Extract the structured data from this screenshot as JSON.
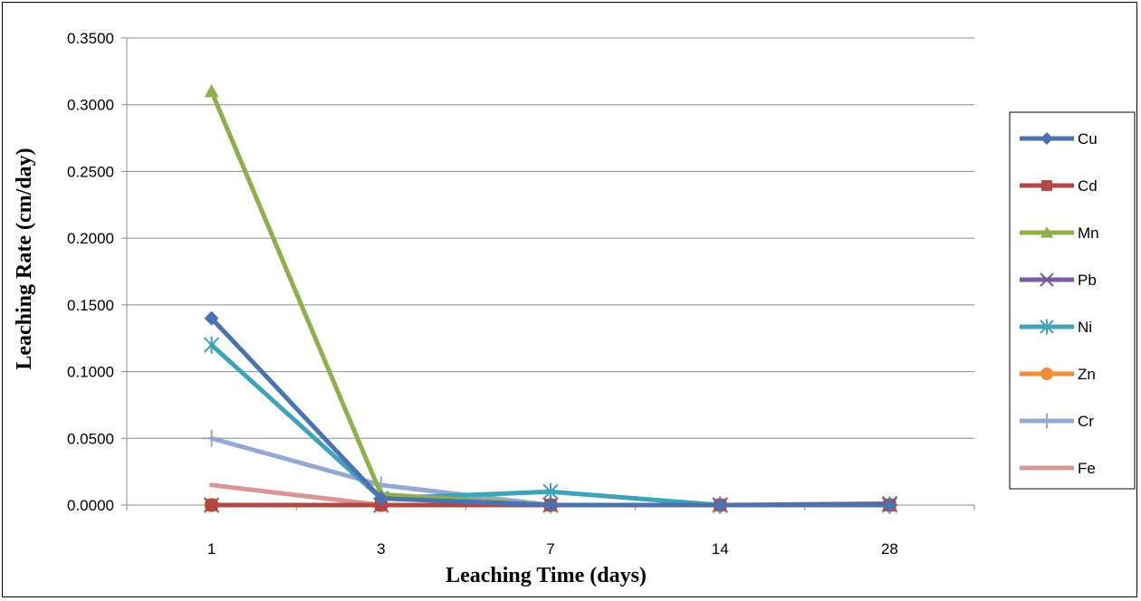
{
  "chart_data": {
    "type": "line",
    "title": "",
    "xlabel": "Leaching Time (days)",
    "ylabel": "Leaching Rate (cm/day)",
    "categories": [
      "1",
      "3",
      "7",
      "14",
      "28"
    ],
    "ylim": [
      0,
      0.35
    ],
    "yticks": [
      "0.0000",
      "0.0500",
      "0.1000",
      "0.1500",
      "0.2000",
      "0.2500",
      "0.3000",
      "0.3500"
    ],
    "grid": "horizontal",
    "legend_position": "right",
    "series": [
      {
        "name": "Cu",
        "values": [
          0.14,
          0.005,
          0.0,
          0.0,
          0.0
        ],
        "color": "#4a72b0",
        "marker": "diamond"
      },
      {
        "name": "Cd",
        "values": [
          0.0,
          0.0,
          0.0,
          0.0,
          0.0
        ],
        "color": "#b34744",
        "marker": "square"
      },
      {
        "name": "Mn",
        "values": [
          0.31,
          0.008,
          0.0,
          0.0,
          0.0
        ],
        "color": "#8db04a",
        "marker": "triangle"
      },
      {
        "name": "Pb",
        "values": [
          0.0,
          0.0,
          0.0,
          0.0,
          0.001
        ],
        "color": "#7a5a9e",
        "marker": "x"
      },
      {
        "name": "Ni",
        "values": [
          0.12,
          0.005,
          0.01,
          0.0,
          0.0
        ],
        "color": "#3fa3b8",
        "marker": "asterisk"
      },
      {
        "name": "Zn",
        "values": [
          0.0,
          0.0,
          0.0,
          0.0,
          0.0
        ],
        "color": "#f08c38",
        "marker": "circle"
      },
      {
        "name": "Cr",
        "values": [
          0.05,
          0.015,
          0.0,
          0.0,
          0.0
        ],
        "color": "#93a9d2",
        "marker": "plus"
      },
      {
        "name": "Fe",
        "values": [
          0.015,
          0.0,
          0.0,
          0.0,
          0.0
        ],
        "color": "#d99594",
        "marker": "none"
      }
    ]
  }
}
